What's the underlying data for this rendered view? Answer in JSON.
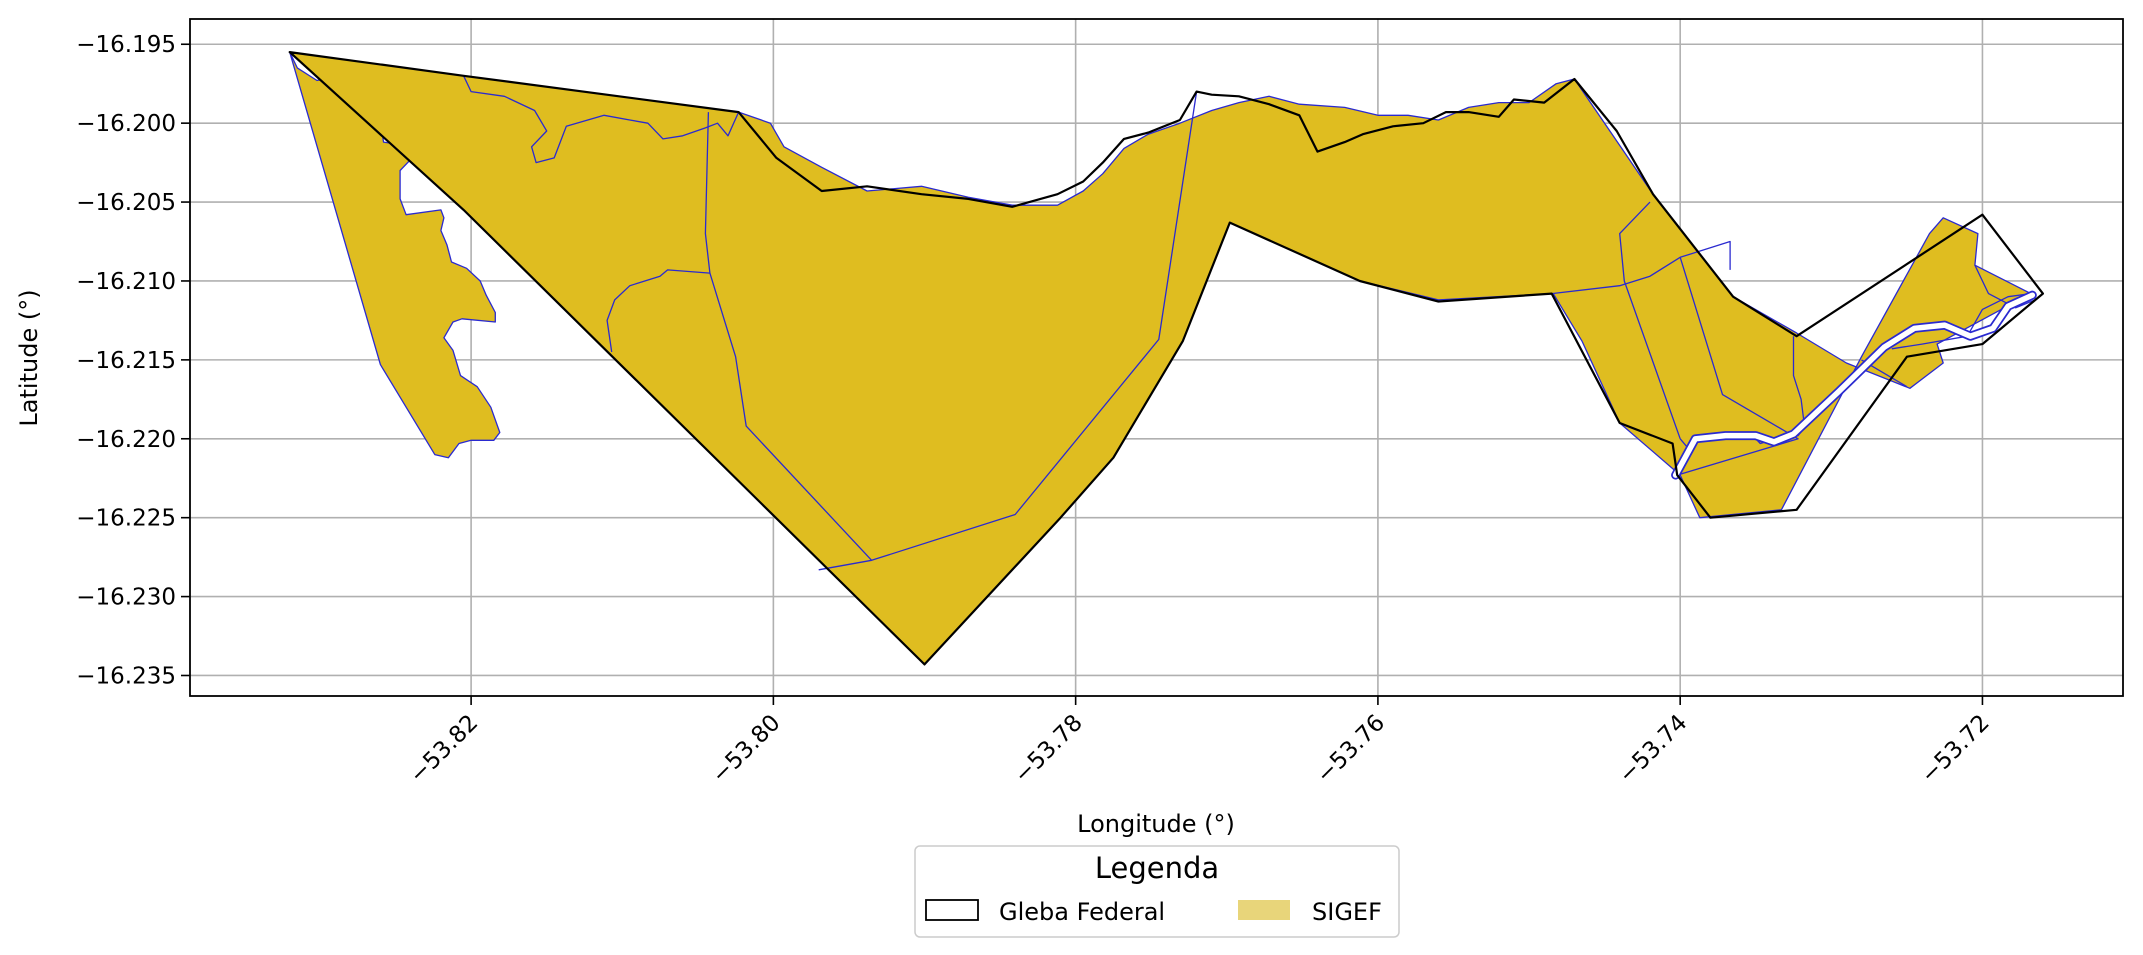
{
  "map": {
    "xlabel": "Longitude (°)",
    "ylabel": "Latitude (°)",
    "x_range": [
      -53.8386,
      -53.7107
    ],
    "y_range": [
      -16.2363,
      -16.1934
    ],
    "x_ticks": [
      -53.82,
      -53.8,
      -53.78,
      -53.76,
      -53.74,
      -53.72
    ],
    "x_tick_labels": [
      "−53.82",
      "−53.80",
      "−53.78",
      "−53.76",
      "−53.74",
      "−53.72"
    ],
    "y_ticks": [
      -16.195,
      -16.2,
      -16.205,
      -16.21,
      -16.215,
      -16.22,
      -16.225,
      -16.23,
      -16.235
    ],
    "y_tick_labels": [
      "−16.195",
      "−16.200",
      "−16.205",
      "−16.210",
      "−16.215",
      "−16.220",
      "−16.225",
      "−16.230",
      "−16.235"
    ],
    "grid": true,
    "colors": {
      "sigef_fill": "#dfbd20",
      "sigef_legend_fill": "#e8d57a",
      "sigef_edge": "#2a2ad0",
      "gleba_edge": "#000000"
    },
    "legend": {
      "title": "Legenda",
      "placement": "bottom-center",
      "items": [
        {
          "label": "Gleba Federal",
          "style": "outline"
        },
        {
          "label": "SIGEF",
          "style": "fill"
        }
      ]
    },
    "layers": {
      "sigef_main": [
        [
          -53.832,
          -16.1955
        ],
        [
          -53.8315,
          -16.1965
        ],
        [
          -53.8302,
          -16.1973
        ],
        [
          -53.8288,
          -16.197
        ],
        [
          -53.8273,
          -16.1975
        ],
        [
          -53.8262,
          -16.1983
        ],
        [
          -53.8258,
          -16.2012
        ],
        [
          -53.8244,
          -16.2014
        ],
        [
          -53.824,
          -16.2023
        ],
        [
          -53.8247,
          -16.203
        ],
        [
          -53.8247,
          -16.2048
        ],
        [
          -53.8243,
          -16.2058
        ],
        [
          -53.822,
          -16.2055
        ],
        [
          -53.8218,
          -16.206
        ],
        [
          -53.822,
          -16.2068
        ],
        [
          -53.8216,
          -16.2077
        ],
        [
          -53.8213,
          -16.2088
        ],
        [
          -53.8203,
          -16.2092
        ],
        [
          -53.8194,
          -16.21
        ],
        [
          -53.819,
          -16.2109
        ],
        [
          -53.8184,
          -16.212
        ],
        [
          -53.8184,
          -16.2126
        ],
        [
          -53.8206,
          -16.2124
        ],
        [
          -53.8212,
          -16.2126
        ],
        [
          -53.8218,
          -16.2136
        ],
        [
          -53.8212,
          -16.2144
        ],
        [
          -53.8207,
          -16.216
        ],
        [
          -53.8196,
          -16.2167
        ],
        [
          -53.8187,
          -16.218
        ],
        [
          -53.8181,
          -16.2196
        ],
        [
          -53.8185,
          -16.2201
        ],
        [
          -53.82,
          -16.2201
        ],
        [
          -53.8208,
          -16.2203
        ],
        [
          -53.8215,
          -16.2212
        ],
        [
          -53.8224,
          -16.221
        ],
        [
          -53.826,
          -16.2153
        ]
      ],
      "sigef_big": [
        [
          -53.832,
          -16.1955
        ],
        [
          -53.8205,
          -16.197
        ],
        [
          -53.8023,
          -16.1993
        ],
        [
          -53.8002,
          -16.2
        ],
        [
          -53.7993,
          -16.2015
        ],
        [
          -53.7968,
          -16.2028
        ],
        [
          -53.7938,
          -16.2043
        ],
        [
          -53.7902,
          -16.204
        ],
        [
          -53.7871,
          -16.2047
        ],
        [
          -53.7842,
          -16.2052
        ],
        [
          -53.7812,
          -16.2052
        ],
        [
          -53.7795,
          -16.2043
        ],
        [
          -53.7782,
          -16.2032
        ],
        [
          -53.7768,
          -16.2016
        ],
        [
          -53.7752,
          -16.2007
        ],
        [
          -53.7731,
          -16.2
        ],
        [
          -53.771,
          -16.1992
        ],
        [
          -53.7692,
          -16.1987
        ],
        [
          -53.7672,
          -16.1983
        ],
        [
          -53.7652,
          -16.1988
        ],
        [
          -53.7622,
          -16.199
        ],
        [
          -53.76,
          -16.1995
        ],
        [
          -53.758,
          -16.1995
        ],
        [
          -53.756,
          -16.1998
        ],
        [
          -53.754,
          -16.199
        ],
        [
          -53.752,
          -16.1987
        ],
        [
          -53.75,
          -16.1987
        ],
        [
          -53.7482,
          -16.1975
        ],
        [
          -53.747,
          -16.1972
        ],
        [
          -53.7418,
          -16.2045
        ],
        [
          -53.7365,
          -16.211
        ],
        [
          -53.7323,
          -16.2133
        ],
        [
          -53.729,
          -16.2152
        ],
        [
          -53.7248,
          -16.2168
        ],
        [
          -53.7226,
          -16.2152
        ],
        [
          -53.723,
          -16.214
        ],
        [
          -53.7168,
          -16.2108
        ],
        [
          -53.7205,
          -16.209
        ],
        [
          -53.7203,
          -16.207
        ],
        [
          -53.7226,
          -16.206
        ],
        [
          -53.7235,
          -16.207
        ],
        [
          -53.728,
          -16.2148
        ],
        [
          -53.7333,
          -16.2245
        ],
        [
          -53.7387,
          -16.225
        ],
        [
          -53.74,
          -16.2223
        ],
        [
          -53.744,
          -16.219
        ],
        [
          -53.7465,
          -16.2138
        ],
        [
          -53.7484,
          -16.2108
        ],
        [
          -53.756,
          -16.2112
        ],
        [
          -53.7612,
          -16.21
        ],
        [
          -53.7698,
          -16.2063
        ],
        [
          -53.7729,
          -16.2138
        ],
        [
          -53.7775,
          -16.2212
        ],
        [
          -53.781,
          -16.225
        ],
        [
          -53.79,
          -16.2343
        ],
        [
          -53.8205,
          -16.2055
        ]
      ],
      "gleba_outline": [
        [
          -53.832,
          -16.1955
        ],
        [
          -53.8205,
          -16.197
        ],
        [
          -53.8023,
          -16.1993
        ],
        [
          -53.7998,
          -16.2022
        ],
        [
          -53.7968,
          -16.2043
        ],
        [
          -53.7938,
          -16.204
        ],
        [
          -53.7902,
          -16.2045
        ],
        [
          -53.7871,
          -16.2048
        ],
        [
          -53.7842,
          -16.2053
        ],
        [
          -53.7812,
          -16.2045
        ],
        [
          -53.7795,
          -16.2037
        ],
        [
          -53.7782,
          -16.2025
        ],
        [
          -53.7768,
          -16.201
        ],
        [
          -53.7752,
          -16.2006
        ],
        [
          -53.7731,
          -16.1998
        ],
        [
          -53.772,
          -16.198
        ],
        [
          -53.771,
          -16.1982
        ],
        [
          -53.7692,
          -16.1983
        ],
        [
          -53.7672,
          -16.1988
        ],
        [
          -53.7652,
          -16.1995
        ],
        [
          -53.764,
          -16.2018
        ],
        [
          -53.7622,
          -16.2012
        ],
        [
          -53.761,
          -16.2007
        ],
        [
          -53.759,
          -16.2002
        ],
        [
          -53.757,
          -16.2
        ],
        [
          -53.7555,
          -16.1993
        ],
        [
          -53.754,
          -16.1993
        ],
        [
          -53.752,
          -16.1996
        ],
        [
          -53.751,
          -16.1985
        ],
        [
          -53.749,
          -16.1987
        ],
        [
          -53.747,
          -16.1972
        ],
        [
          -53.7442,
          -16.2005
        ],
        [
          -53.7418,
          -16.2045
        ],
        [
          -53.7365,
          -16.211
        ],
        [
          -53.7323,
          -16.2135
        ],
        [
          -53.72,
          -16.2058
        ],
        [
          -53.716,
          -16.2108
        ],
        [
          -53.72,
          -16.214
        ],
        [
          -53.725,
          -16.2148
        ],
        [
          -53.7323,
          -16.2245
        ],
        [
          -53.738,
          -16.225
        ],
        [
          -53.7402,
          -16.2223
        ],
        [
          -53.7405,
          -16.2203
        ],
        [
          -53.744,
          -16.219
        ],
        [
          -53.7485,
          -16.2108
        ],
        [
          -53.756,
          -16.2113
        ],
        [
          -53.7612,
          -16.21
        ],
        [
          -53.7698,
          -16.2063
        ],
        [
          -53.7729,
          -16.2138
        ],
        [
          -53.7775,
          -16.2212
        ],
        [
          -53.781,
          -16.225
        ],
        [
          -53.79,
          -16.2343
        ],
        [
          -53.8205,
          -16.2055
        ],
        [
          -53.832,
          -16.1955
        ]
      ],
      "parcel_lines": [
        [
          [
            -53.8205,
            -16.197
          ],
          [
            -53.82,
            -16.198
          ],
          [
            -53.8178,
            -16.1983
          ],
          [
            -53.8158,
            -16.1992
          ],
          [
            -53.815,
            -16.2005
          ],
          [
            -53.816,
            -16.2015
          ],
          [
            -53.8157,
            -16.2025
          ],
          [
            -53.8145,
            -16.2022
          ],
          [
            -53.8137,
            -16.2002
          ],
          [
            -53.8112,
            -16.1995
          ],
          [
            -53.8095,
            -16.1998
          ],
          [
            -53.8083,
            -16.2
          ],
          [
            -53.8073,
            -16.201
          ],
          [
            -53.806,
            -16.2008
          ],
          [
            -53.8045,
            -16.2003
          ],
          [
            -53.8037,
            -16.2
          ],
          [
            -53.803,
            -16.2008
          ],
          [
            -53.8023,
            -16.1993
          ]
        ],
        [
          [
            -53.8043,
            -16.1993
          ],
          [
            -53.8045,
            -16.207
          ],
          [
            -53.8042,
            -16.2095
          ],
          [
            -53.8025,
            -16.2148
          ],
          [
            -53.8018,
            -16.2192
          ],
          [
            -53.7935,
            -16.2277
          ],
          [
            -53.797,
            -16.2283
          ]
        ],
        [
          [
            -53.7935,
            -16.2277
          ],
          [
            -53.784,
            -16.2248
          ],
          [
            -53.7745,
            -16.2137
          ],
          [
            -53.772,
            -16.198
          ]
        ],
        [
          [
            -53.8042,
            -16.2095
          ],
          [
            -53.807,
            -16.2093
          ],
          [
            -53.8075,
            -16.2097
          ],
          [
            -53.8095,
            -16.2103
          ],
          [
            -53.8105,
            -16.2112
          ],
          [
            -53.811,
            -16.2125
          ],
          [
            -53.8107,
            -16.2145
          ]
        ],
        [
          [
            -53.7485,
            -16.2108
          ],
          [
            -53.744,
            -16.2103
          ],
          [
            -53.742,
            -16.2097
          ],
          [
            -53.74,
            -16.2085
          ],
          [
            -53.7367,
            -16.2075
          ],
          [
            -53.7367,
            -16.2093
          ]
        ],
        [
          [
            -53.742,
            -16.205
          ],
          [
            -53.744,
            -16.207
          ],
          [
            -53.7437,
            -16.21
          ],
          [
            -53.74,
            -16.22
          ]
        ],
        [
          [
            -53.74,
            -16.2085
          ],
          [
            -53.7372,
            -16.2172
          ],
          [
            -53.7322,
            -16.22
          ],
          [
            -53.7402,
            -16.2223
          ]
        ],
        [
          [
            -53.7325,
            -16.2135
          ],
          [
            -53.7325,
            -16.216
          ],
          [
            -53.732,
            -16.2175
          ],
          [
            -53.7318,
            -16.219
          ],
          [
            -53.7322,
            -16.2198
          ],
          [
            -53.73,
            -16.2172
          ],
          [
            -53.728,
            -16.2155
          ]
        ],
        [
          [
            -53.728,
            -16.215
          ],
          [
            -53.725,
            -16.2167
          ]
        ],
        [
          [
            -53.726,
            -16.2143
          ],
          [
            -53.724,
            -16.214
          ],
          [
            -53.721,
            -16.2135
          ],
          [
            -53.72,
            -16.2118
          ],
          [
            -53.7183,
            -16.211
          ],
          [
            -53.7168,
            -16.2108
          ]
        ],
        [
          [
            -53.74,
            -16.22
          ],
          [
            -53.7393,
            -16.2208
          ],
          [
            -53.7388,
            -16.2198
          ],
          [
            -53.737,
            -16.2198
          ],
          [
            -53.7352,
            -16.2198
          ],
          [
            -53.7347,
            -16.2203
          ],
          [
            -53.7337,
            -16.22
          ],
          [
            -53.7322,
            -16.2198
          ]
        ],
        [
          [
            -53.7205,
            -16.209
          ],
          [
            -53.7196,
            -16.2108
          ],
          [
            -53.7178,
            -16.2117
          ],
          [
            -53.7165,
            -16.2112
          ]
        ]
      ],
      "river_channel": [
        [
          -53.7403,
          -16.2223
        ],
        [
          -53.739,
          -16.22
        ],
        [
          -53.737,
          -16.2198
        ],
        [
          -53.735,
          -16.2198
        ],
        [
          -53.7338,
          -16.2202
        ],
        [
          -53.7325,
          -16.2197
        ],
        [
          -53.7295,
          -16.217
        ],
        [
          -53.7265,
          -16.2142
        ],
        [
          -53.7245,
          -16.213
        ],
        [
          -53.7225,
          -16.2128
        ],
        [
          -53.7208,
          -16.2135
        ],
        [
          -53.7193,
          -16.213
        ],
        [
          -53.7183,
          -16.2116
        ],
        [
          -53.7167,
          -16.2109
        ]
      ]
    }
  }
}
